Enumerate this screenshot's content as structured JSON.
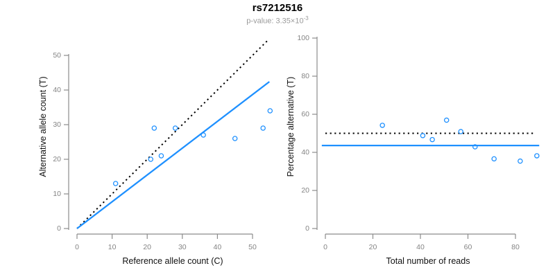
{
  "header": {
    "title": "rs7212516",
    "subtitle_base": "p-value: 3.35×10",
    "subtitle_exponent": "-3"
  },
  "colors": {
    "accent_blue": "#1E90FF",
    "dotted_black": "#000000",
    "axis_gray": "#8b8b8b",
    "tick_label_gray": "#848484",
    "axis_title_color": "#111111"
  },
  "chart_data": [
    {
      "type": "scatter",
      "panel": "left",
      "xlabel": "Reference allele count (C)",
      "ylabel": "Alternative allele count (T)",
      "xlim": [
        0,
        56
      ],
      "ylim": [
        0,
        55
      ],
      "xticks": [
        0,
        10,
        20,
        30,
        40,
        50
      ],
      "yticks": [
        0,
        10,
        20,
        30,
        40,
        50
      ],
      "grid": false,
      "points": [
        [
          11,
          13
        ],
        [
          21,
          20
        ],
        [
          22,
          29
        ],
        [
          24,
          21
        ],
        [
          28,
          29
        ],
        [
          36,
          27
        ],
        [
          45,
          26
        ],
        [
          53,
          29
        ],
        [
          55,
          34
        ]
      ],
      "lines": [
        {
          "name": "identity-line",
          "style": "dotted",
          "role": "expected 1:1 ratio",
          "from": [
            0,
            0
          ],
          "to": [
            54.3,
            54.3
          ]
        },
        {
          "name": "fit-line",
          "style": "solid",
          "role": "observed allelic ratio, slope 0.773",
          "from": [
            0,
            0
          ],
          "to": [
            54.8,
            42.4
          ]
        }
      ]
    },
    {
      "type": "scatter",
      "panel": "right",
      "xlabel": "Total number of reads",
      "ylabel": "Percentage alternative (T)",
      "xlim": [
        0,
        90
      ],
      "ylim": [
        0,
        100
      ],
      "xticks": [
        0,
        20,
        40,
        60,
        80
      ],
      "yticks": [
        0,
        20,
        40,
        60,
        80,
        100
      ],
      "grid": false,
      "points": [
        [
          24,
          54.2
        ],
        [
          41,
          48.8
        ],
        [
          45,
          46.7
        ],
        [
          51,
          56.9
        ],
        [
          57,
          50.9
        ],
        [
          63,
          42.9
        ],
        [
          71,
          36.6
        ],
        [
          82,
          35.4
        ],
        [
          89,
          38.2
        ]
      ],
      "lines": [
        {
          "name": "expected-50pct-line",
          "style": "dotted",
          "role": "expected 50%",
          "from": [
            0,
            50
          ],
          "to": [
            88,
            50
          ]
        },
        {
          "name": "observed-pct-line",
          "style": "solid",
          "role": "observed mean 43.6%",
          "from": [
            -1.5,
            43.6
          ],
          "to": [
            90,
            43.6
          ]
        }
      ]
    }
  ]
}
